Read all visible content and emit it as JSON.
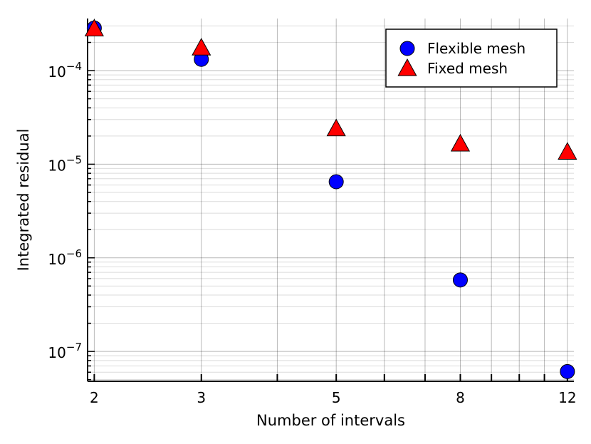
{
  "chart_data": {
    "type": "scatter",
    "xlabel": "Number of intervals",
    "ylabel": "Integrated residual",
    "x_scale": "log",
    "y_scale": "log",
    "xlim": [
      1.95,
      12.3
    ],
    "ylim": [
      4.8e-08,
      0.00036
    ],
    "x_ticks": [
      2,
      3,
      5,
      8,
      12
    ],
    "x_minor_ticks": [
      4,
      6,
      7,
      9,
      10,
      11
    ],
    "y_ticks": [
      {
        "value": 1e-07,
        "base": "10",
        "exp": "−7"
      },
      {
        "value": 1e-06,
        "base": "10",
        "exp": "−6"
      },
      {
        "value": 1e-05,
        "base": "10",
        "exp": "−5"
      },
      {
        "value": 0.0001,
        "base": "10",
        "exp": "−4"
      }
    ],
    "grid": true,
    "legend_position": "top-right",
    "series": [
      {
        "name": "Flexible mesh",
        "marker": "circle",
        "color": "#0000ff",
        "points": [
          {
            "x": 2,
            "y": 0.000285
          },
          {
            "x": 3,
            "y": 0.000132
          },
          {
            "x": 5,
            "y": 6.5e-06
          },
          {
            "x": 8,
            "y": 5.8e-07
          },
          {
            "x": 12,
            "y": 6.1e-08
          }
        ]
      },
      {
        "name": "Fixed mesh",
        "marker": "triangle",
        "color": "#ff0000",
        "points": [
          {
            "x": 2,
            "y": 0.00028
          },
          {
            "x": 3,
            "y": 0.000175
          },
          {
            "x": 5,
            "y": 2.4e-05
          },
          {
            "x": 8,
            "y": 1.65e-05
          },
          {
            "x": 12,
            "y": 1.35e-05
          }
        ]
      }
    ]
  }
}
